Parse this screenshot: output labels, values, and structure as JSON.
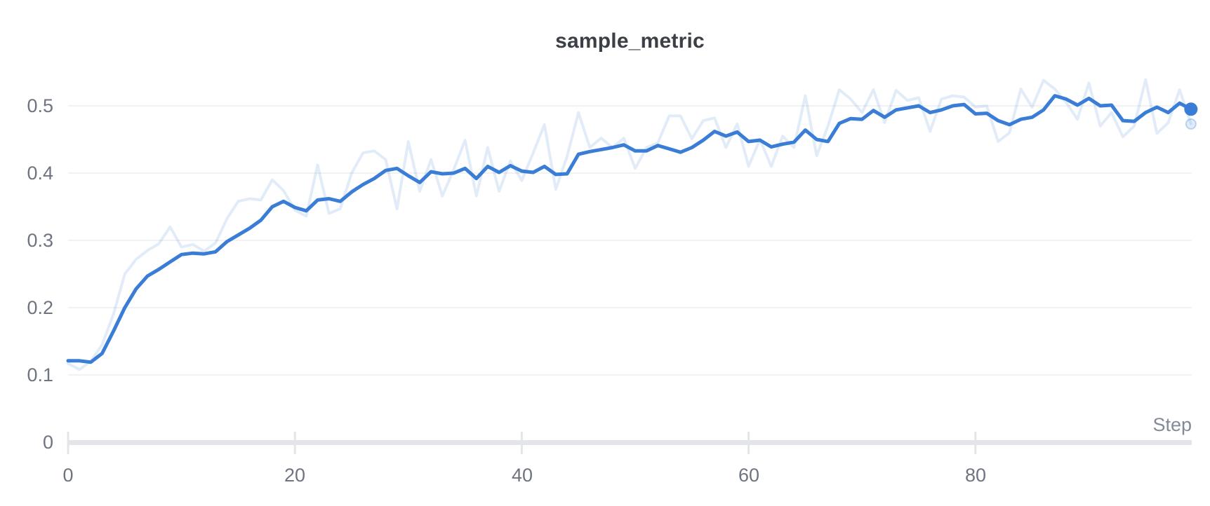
{
  "panel": {
    "background": "#ffffff"
  },
  "chart_data": {
    "type": "line",
    "title": "sample_metric",
    "xlabel": "Step",
    "ylabel": "",
    "xlim": [
      0,
      99
    ],
    "ylim": [
      0,
      0.556
    ],
    "grid": "horizontal-only",
    "legend": "none",
    "x_ticks": [
      {
        "label": "0",
        "step": 0
      },
      {
        "label": "20",
        "step": 20
      },
      {
        "label": "40",
        "step": 40
      },
      {
        "label": "60",
        "step": 60
      },
      {
        "label": "80",
        "step": 80
      }
    ],
    "y_ticks": [
      {
        "label": "0.5",
        "value": 0.5
      },
      {
        "label": "0.4",
        "value": 0.4
      },
      {
        "label": "0.3",
        "value": 0.3
      },
      {
        "label": "0.2",
        "value": 0.2
      },
      {
        "label": "0.1",
        "value": 0.1
      },
      {
        "label": "0",
        "value": 0
      }
    ],
    "colors": {
      "line": "#3a7dd6",
      "original_line_opacity": 0.15,
      "grid": "#ebedef",
      "axis": "#e4e5e8",
      "tick_label": "#6e7480",
      "axis_title": "#838a99",
      "title": "#3b3f46"
    },
    "series": [
      {
        "name": "sample_metric (original)",
        "role": "unsmoothed",
        "values": [
          0.117,
          0.108,
          0.12,
          0.145,
          0.19,
          0.25,
          0.272,
          0.285,
          0.295,
          0.32,
          0.29,
          0.294,
          0.284,
          0.296,
          0.332,
          0.358,
          0.362,
          0.36,
          0.39,
          0.374,
          0.345,
          0.336,
          0.412,
          0.34,
          0.347,
          0.4,
          0.43,
          0.433,
          0.42,
          0.347,
          0.447,
          0.373,
          0.42,
          0.366,
          0.405,
          0.449,
          0.366,
          0.438,
          0.373,
          0.418,
          0.389,
          0.43,
          0.472,
          0.376,
          0.425,
          0.49,
          0.438,
          0.452,
          0.438,
          0.452,
          0.407,
          0.438,
          0.445,
          0.485,
          0.485,
          0.451,
          0.478,
          0.482,
          0.438,
          0.473,
          0.41,
          0.45,
          0.41,
          0.455,
          0.438,
          0.515,
          0.426,
          0.47,
          0.524,
          0.51,
          0.49,
          0.524,
          0.475,
          0.523,
          0.508,
          0.512,
          0.462,
          0.51,
          0.515,
          0.513,
          0.498,
          0.5,
          0.447,
          0.46,
          0.525,
          0.498,
          0.538,
          0.525,
          0.505,
          0.48,
          0.534,
          0.47,
          0.49,
          0.454,
          0.47,
          0.539,
          0.459,
          0.475,
          0.524,
          0.473
        ]
      },
      {
        "name": "sample_metric (smoothed)",
        "role": "smoothed",
        "values": [
          0.121,
          0.121,
          0.119,
          0.132,
          0.165,
          0.2,
          0.228,
          0.247,
          0.257,
          0.268,
          0.279,
          0.281,
          0.28,
          0.283,
          0.298,
          0.308,
          0.318,
          0.33,
          0.35,
          0.358,
          0.349,
          0.344,
          0.36,
          0.362,
          0.358,
          0.372,
          0.383,
          0.392,
          0.404,
          0.407,
          0.396,
          0.386,
          0.402,
          0.399,
          0.4,
          0.407,
          0.392,
          0.41,
          0.401,
          0.411,
          0.403,
          0.401,
          0.41,
          0.398,
          0.399,
          0.428,
          0.432,
          0.435,
          0.438,
          0.442,
          0.433,
          0.433,
          0.441,
          0.436,
          0.431,
          0.438,
          0.449,
          0.462,
          0.455,
          0.461,
          0.447,
          0.449,
          0.439,
          0.443,
          0.446,
          0.464,
          0.45,
          0.447,
          0.474,
          0.481,
          0.48,
          0.493,
          0.483,
          0.494,
          0.497,
          0.5,
          0.49,
          0.494,
          0.5,
          0.502,
          0.488,
          0.489,
          0.478,
          0.472,
          0.48,
          0.483,
          0.494,
          0.515,
          0.51,
          0.501,
          0.511,
          0.5,
          0.501,
          0.478,
          0.477,
          0.49,
          0.498,
          0.49,
          0.504,
          0.495
        ]
      }
    ],
    "end_markers": {
      "smoothed_value": 0.495,
      "original_value": 0.473,
      "step": 99
    }
  }
}
